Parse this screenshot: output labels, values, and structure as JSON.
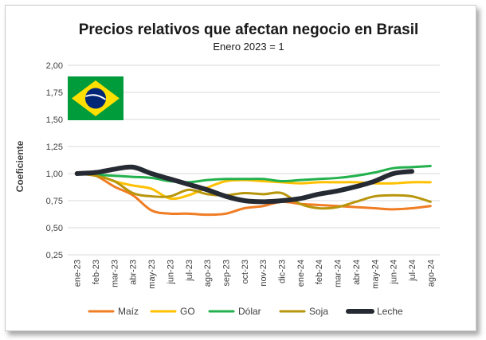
{
  "chart_data": {
    "type": "line",
    "title": "Precios relativos que afectan negocio en Brasil",
    "subtitle": "Enero 2023 = 1",
    "ylabel": "Coeficiente",
    "xlabel": "",
    "ylim": [
      0.25,
      2.0
    ],
    "yticks": [
      "0,25",
      "0,50",
      "0,75",
      "1,00",
      "1,25",
      "1,50",
      "1,75",
      "2,00"
    ],
    "ytick_values": [
      0.25,
      0.5,
      0.75,
      1.0,
      1.25,
      1.5,
      1.75,
      2.0
    ],
    "grid": true,
    "legend_position": "bottom",
    "categories": [
      "ene-23",
      "feb-23",
      "mar-23",
      "abr-23",
      "may-23",
      "jun-23",
      "jul-23",
      "ago-23",
      "sep-23",
      "oct-23",
      "nov-23",
      "dic-23",
      "ene-24",
      "feb-24",
      "mar-24",
      "abr-24",
      "may-24",
      "jun-24",
      "jul-24",
      "ago-24"
    ],
    "series": [
      {
        "name": "Maíz",
        "color": "#f07c23",
        "width": 3,
        "values": [
          1.0,
          0.98,
          0.88,
          0.8,
          0.66,
          0.63,
          0.63,
          0.62,
          0.63,
          0.68,
          0.7,
          0.74,
          0.72,
          0.71,
          0.7,
          0.69,
          0.68,
          0.67,
          0.68,
          0.7
        ]
      },
      {
        "name": "GO",
        "color": "#ffc000",
        "width": 3,
        "values": [
          1.0,
          0.99,
          0.93,
          0.89,
          0.86,
          0.77,
          0.8,
          0.87,
          0.93,
          0.94,
          0.93,
          0.92,
          0.91,
          0.92,
          0.92,
          0.92,
          0.91,
          0.91,
          0.92,
          0.92
        ]
      },
      {
        "name": "Dólar",
        "color": "#22b14c",
        "width": 3,
        "values": [
          1.0,
          0.99,
          0.98,
          0.97,
          0.96,
          0.93,
          0.92,
          0.94,
          0.95,
          0.95,
          0.95,
          0.93,
          0.94,
          0.95,
          0.96,
          0.98,
          1.01,
          1.05,
          1.06,
          1.07
        ]
      },
      {
        "name": "Soja",
        "color": "#b8960c",
        "width": 3,
        "values": [
          1.0,
          0.98,
          0.93,
          0.82,
          0.79,
          0.79,
          0.85,
          0.81,
          0.8,
          0.82,
          0.81,
          0.82,
          0.72,
          0.68,
          0.69,
          0.74,
          0.79,
          0.8,
          0.79,
          0.74
        ]
      },
      {
        "name": "Leche",
        "color": "#262b33",
        "width": 6,
        "values": [
          1.0,
          1.01,
          1.04,
          1.06,
          1.0,
          0.95,
          0.9,
          0.85,
          0.79,
          0.75,
          0.74,
          0.75,
          0.77,
          0.81,
          0.84,
          0.88,
          0.93,
          1.0,
          1.02,
          1.0
        ],
        "points": 19
      }
    ]
  },
  "flag": {
    "icon": "brazil-flag",
    "green": "#009b3a",
    "yellow": "#fedf00",
    "blue": "#002776"
  }
}
